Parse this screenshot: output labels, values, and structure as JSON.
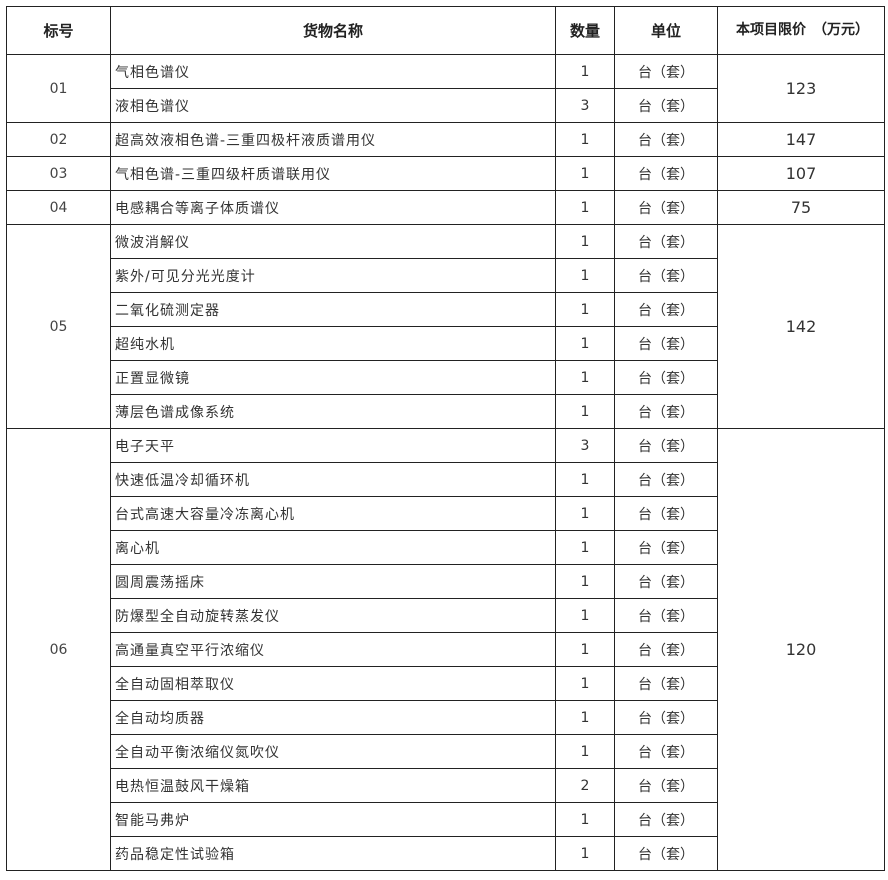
{
  "headers": {
    "id": "标号",
    "name": "货物名称",
    "qty": "数量",
    "unit": "单位",
    "price": "本项目限价　（万元）"
  },
  "groups": [
    {
      "id": "01",
      "price": "123",
      "items": [
        {
          "name": "气相色谱仪",
          "qty": "1",
          "unit": "台（套）"
        },
        {
          "name": "液相色谱仪",
          "qty": "3",
          "unit": "台（套）"
        }
      ]
    },
    {
      "id": "02",
      "price": "147",
      "items": [
        {
          "name": "超高效液相色谱-三重四极杆液质谱用仪",
          "qty": "1",
          "unit": "台（套）"
        }
      ]
    },
    {
      "id": "03",
      "price": "107",
      "items": [
        {
          "name": "气相色谱-三重四级杆质谱联用仪",
          "qty": "1",
          "unit": "台（套）"
        }
      ]
    },
    {
      "id": "04",
      "price": "75",
      "items": [
        {
          "name": "电感耦合等离子体质谱仪",
          "qty": "1",
          "unit": "台（套）"
        }
      ]
    },
    {
      "id": "05",
      "price": "142",
      "items": [
        {
          "name": "微波消解仪",
          "qty": "1",
          "unit": "台（套）"
        },
        {
          "name": "紫外/可见分光光度计",
          "qty": "1",
          "unit": "台（套）"
        },
        {
          "name": "二氧化硫测定器",
          "qty": "1",
          "unit": "台（套）"
        },
        {
          "name": "超纯水机",
          "qty": "1",
          "unit": "台（套）"
        },
        {
          "name": "正置显微镜",
          "qty": "1",
          "unit": "台（套）"
        },
        {
          "name": "薄层色谱成像系统",
          "qty": "1",
          "unit": "台（套）"
        }
      ]
    },
    {
      "id": "06",
      "price": "120",
      "items": [
        {
          "name": "电子天平",
          "qty": "3",
          "unit": "台（套）"
        },
        {
          "name": "快速低温冷却循环机",
          "qty": "1",
          "unit": "台（套）"
        },
        {
          "name": "台式高速大容量冷冻离心机",
          "qty": "1",
          "unit": "台（套）"
        },
        {
          "name": "离心机",
          "qty": "1",
          "unit": "台（套）"
        },
        {
          "name": "圆周震荡摇床",
          "qty": "1",
          "unit": "台（套）"
        },
        {
          "name": "防爆型全自动旋转蒸发仪",
          "qty": "1",
          "unit": "台（套）"
        },
        {
          "name": "高通量真空平行浓缩仪",
          "qty": "1",
          "unit": "台（套）"
        },
        {
          "name": "全自动固相萃取仪",
          "qty": "1",
          "unit": "台（套）"
        },
        {
          "name": "全自动均质器",
          "qty": "1",
          "unit": "台（套）"
        },
        {
          "name": "全自动平衡浓缩仪氮吹仪",
          "qty": "1",
          "unit": "台（套）"
        },
        {
          "name": "电热恒温鼓风干燥箱",
          "qty": "2",
          "unit": "台（套）"
        },
        {
          "name": "智能马弗炉",
          "qty": "1",
          "unit": "台（套）"
        },
        {
          "name": "药品稳定性试验箱",
          "qty": "1",
          "unit": "台（套）"
        }
      ]
    }
  ]
}
